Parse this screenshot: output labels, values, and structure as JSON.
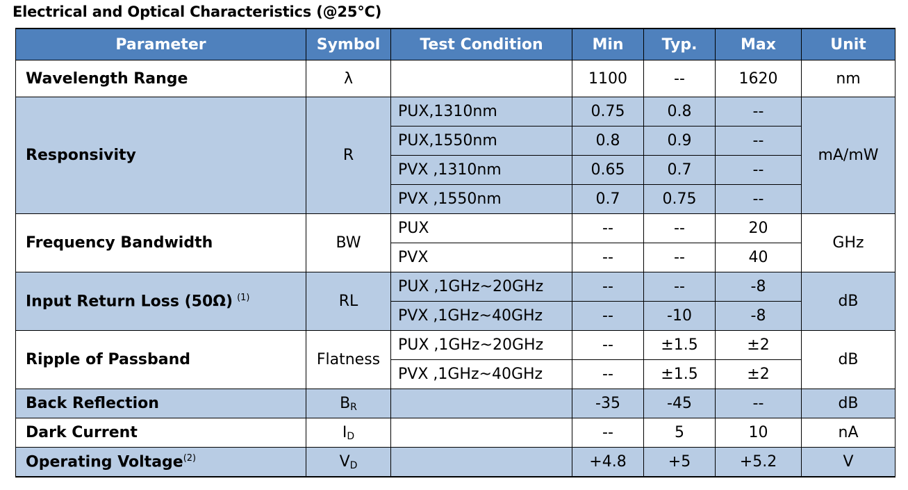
{
  "title": "Electrical and Optical Characteristics (@25°C)",
  "headers": {
    "parameter": "Parameter",
    "symbol": "Symbol",
    "condition": "Test Condition",
    "min": "Min",
    "typ": "Typ.",
    "max": "Max",
    "unit": "Unit"
  },
  "wavelength": {
    "param": "Wavelength Range",
    "symbol": "λ",
    "condition": "",
    "min": "1100",
    "typ": "--",
    "max": "1620",
    "unit": "nm"
  },
  "responsivity": {
    "param": "Responsivity",
    "symbol": "R",
    "unit": "mA/mW",
    "rows": [
      {
        "condition": "PUX,1310nm",
        "min": "0.75",
        "typ": "0.8",
        "max": "--"
      },
      {
        "condition": "PUX,1550nm",
        "min": "0.8",
        "typ": "0.9",
        "max": "--"
      },
      {
        "condition": "PVX ,1310nm",
        "min": "0.65",
        "typ": "0.7",
        "max": "--"
      },
      {
        "condition": "PVX ,1550nm",
        "min": "0.7",
        "typ": "0.75",
        "max": "--"
      }
    ]
  },
  "bandwidth": {
    "param": "Frequency Bandwidth",
    "symbol": "BW",
    "unit": "GHz",
    "rows": [
      {
        "condition": "PUX",
        "min": "--",
        "typ": "--",
        "max": "20"
      },
      {
        "condition": "PVX",
        "min": "--",
        "typ": "--",
        "max": "40"
      }
    ]
  },
  "return_loss": {
    "param": "Input Return Loss (50Ω)",
    "note": "(1)",
    "symbol": "RL",
    "unit": "dB",
    "rows": [
      {
        "condition": "PUX ,1GHz~20GHz",
        "min": "--",
        "typ": "--",
        "max": "-8"
      },
      {
        "condition": "PVX ,1GHz~40GHz",
        "min": "--",
        "typ": "-10",
        "max": "-8"
      }
    ]
  },
  "ripple": {
    "param": "Ripple of Passband",
    "symbol": "Flatness",
    "unit": "dB",
    "rows": [
      {
        "condition": "PUX ,1GHz~20GHz",
        "min": "--",
        "typ": "±1.5",
        "max": "±2"
      },
      {
        "condition": "PVX ,1GHz~40GHz",
        "min": "--",
        "typ": "±1.5",
        "max": "±2"
      }
    ]
  },
  "back_reflection": {
    "param": "Back Reflection",
    "symbol_main": "B",
    "symbol_sub": "R",
    "condition": "",
    "min": "-35",
    "typ": "-45",
    "max": "--",
    "unit": "dB"
  },
  "dark_current": {
    "param": "Dark Current",
    "symbol_main": "I",
    "symbol_sub": "D",
    "condition": "",
    "min": "--",
    "typ": "5",
    "max": "10",
    "unit": "nA"
  },
  "voltage": {
    "param": "Operating Voltage",
    "note": "(2)",
    "symbol_main": "V",
    "symbol_sub": "D",
    "condition": "",
    "min": "+4.8",
    "typ": "+5",
    "max": "+5.2",
    "unit": "V"
  }
}
